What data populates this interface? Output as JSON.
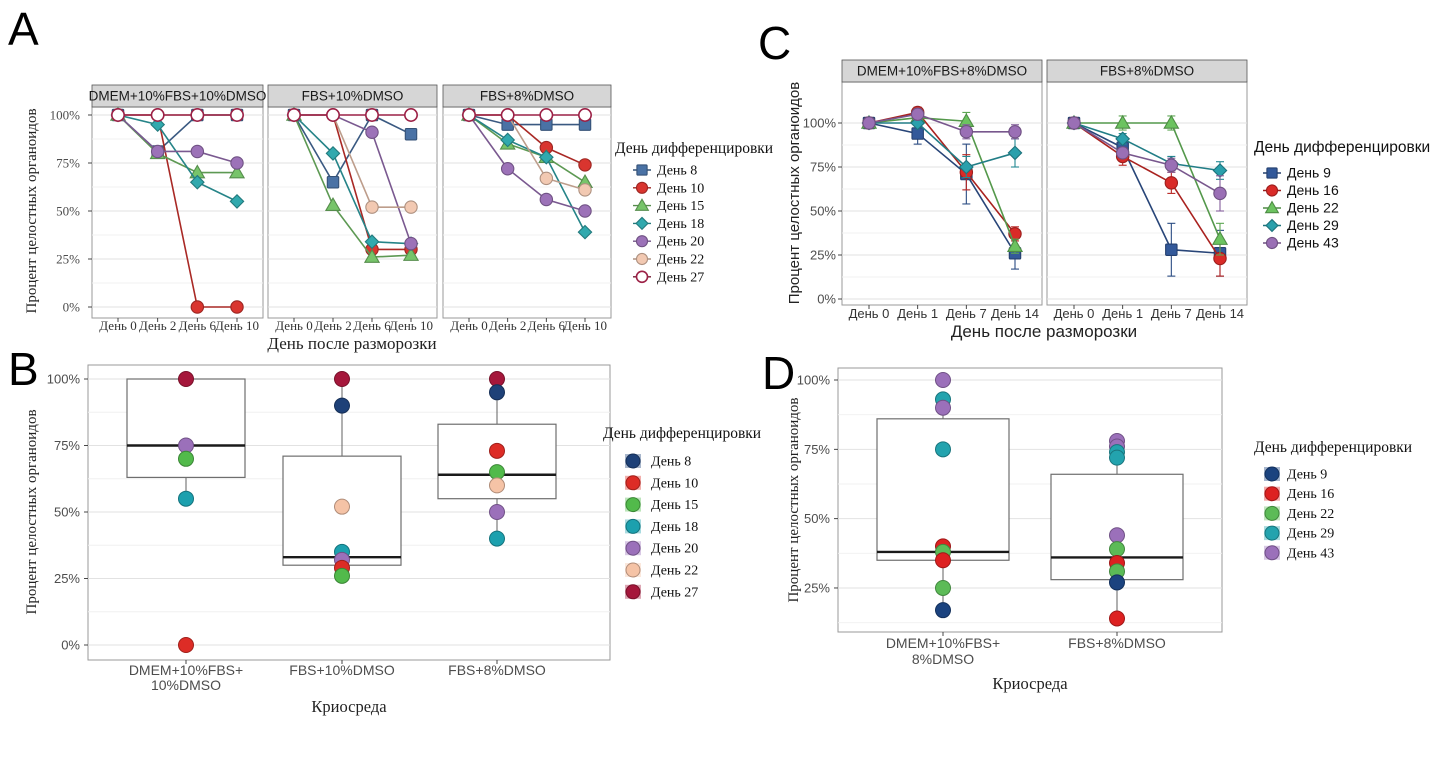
{
  "figure": {
    "background": "#ffffff",
    "panel_labels": {
      "a": "A",
      "b": "B",
      "c": "C",
      "d": "D"
    }
  },
  "chart_data": [
    {
      "panel": "A",
      "type": "line",
      "ylabel": "Процент целостных органоидов",
      "xlabel": "День после разморозки",
      "legend_title": "День дифференцировки",
      "ylim": [
        0,
        100
      ],
      "y_ticks": [
        {
          "v": 100,
          "label": "100%"
        },
        {
          "v": 75,
          "label": "75%"
        },
        {
          "v": 50,
          "label": "50%"
        },
        {
          "v": 25,
          "label": "25%"
        },
        {
          "v": 0,
          "label": "0%"
        }
      ],
      "x_categories": [
        "День 0",
        "День 2",
        "День 6",
        "День 10"
      ],
      "facets": [
        "DMEM+10%FBS+10%DMSO",
        "FBS+10%DMSO",
        "FBS+8%DMSO"
      ],
      "series": [
        {
          "name": "День 8",
          "shape": "square",
          "color": "#4A72A5",
          "values": [
            [
              100,
              81,
              100,
              100
            ],
            [
              100,
              65,
              100,
              90
            ],
            [
              100,
              95,
              95,
              95
            ]
          ]
        },
        {
          "name": "День 10",
          "shape": "circle",
          "color": "#D9352F",
          "values": [
            [
              100,
              100,
              0,
              0
            ],
            [
              100,
              100,
              30,
              30
            ],
            [
              100,
              100,
              83,
              74
            ]
          ]
        },
        {
          "name": "День 15",
          "shape": "triangle",
          "color": "#77C46A",
          "values": [
            [
              100,
              80,
              70,
              70
            ],
            [
              100,
              53,
              26,
              27
            ],
            [
              100,
              85,
              78,
              65
            ]
          ]
        },
        {
          "name": "День 18",
          "shape": "diamond",
          "color": "#31A9AE",
          "values": [
            [
              100,
              95,
              65,
              55
            ],
            [
              100,
              80,
              34,
              33
            ],
            [
              100,
              87,
              78,
              39
            ]
          ]
        },
        {
          "name": "День 20",
          "shape": "circle",
          "color": "#9C72B8",
          "values": [
            [
              100,
              81,
              81,
              75
            ],
            [
              100,
              100,
              91,
              33
            ],
            [
              100,
              72,
              56,
              50
            ]
          ]
        },
        {
          "name": "День 22",
          "shape": "circle",
          "color": "#F2C9B2",
          "values": [
            [
              100,
              100,
              100,
              100
            ],
            [
              100,
              100,
              52,
              52
            ],
            [
              100,
              100,
              67,
              61
            ]
          ]
        },
        {
          "name": "День 27",
          "shape": "open-circle",
          "color": "#9C2146",
          "values": [
            [
              100,
              100,
              100,
              100
            ],
            [
              100,
              100,
              100,
              100
            ],
            [
              100,
              100,
              100,
              100
            ]
          ]
        }
      ]
    },
    {
      "panel": "B",
      "type": "box",
      "ylabel": "Процент целостных органоидов",
      "xlabel": "Криосреда",
      "legend_title": "День дифференцировки",
      "ylim": [
        0,
        100
      ],
      "y_ticks": [
        {
          "v": 100,
          "label": "100%"
        },
        {
          "v": 75,
          "label": "75%"
        },
        {
          "v": 50,
          "label": "50%"
        },
        {
          "v": 25,
          "label": "25%"
        },
        {
          "v": 0,
          "label": "0%"
        }
      ],
      "categories": [
        [
          "DMEM+10%FBS+",
          "10%DMSO"
        ],
        [
          "FBS+10%DMSO"
        ],
        [
          "FBS+8%DMSO"
        ]
      ],
      "legend": [
        {
          "name": "День 8",
          "color": "#1E4178"
        },
        {
          "name": "День 10",
          "color": "#DD2C26"
        },
        {
          "name": "День 15",
          "color": "#52BA4B"
        },
        {
          "name": "День 18",
          "color": "#1CA0AE"
        },
        {
          "name": "День 20",
          "color": "#9B70BA"
        },
        {
          "name": "День 22",
          "color": "#F5C3A6"
        },
        {
          "name": "День 27",
          "color": "#A5173B"
        }
      ],
      "boxes": [
        {
          "q1": 63,
          "median": 75,
          "q3": 100,
          "whisker_low": 55,
          "whisker_high": 100,
          "points": [
            {
              "series": "День 27",
              "value": 100
            },
            {
              "series": "День 20",
              "value": 75
            },
            {
              "series": "День 15",
              "value": 70
            },
            {
              "series": "День 18",
              "value": 55
            },
            {
              "series": "День 10",
              "value": 0
            }
          ]
        },
        {
          "q1": 30,
          "median": 33,
          "q3": 71,
          "whisker_low": 26,
          "whisker_high": 100,
          "points": [
            {
              "series": "День 27",
              "value": 100
            },
            {
              "series": "День 8",
              "value": 90
            },
            {
              "series": "День 22",
              "value": 52
            },
            {
              "series": "День 18",
              "value": 35
            },
            {
              "series": "День 20",
              "value": 32
            },
            {
              "series": "День 10",
              "value": 29
            },
            {
              "series": "День 15",
              "value": 26
            }
          ]
        },
        {
          "q1": 55,
          "median": 64,
          "q3": 83,
          "whisker_low": 40,
          "whisker_high": 95,
          "points": [
            {
              "series": "День 27",
              "value": 100
            },
            {
              "series": "День 8",
              "value": 95
            },
            {
              "series": "День 10",
              "value": 73
            },
            {
              "series": "День 15",
              "value": 65
            },
            {
              "series": "День 22",
              "value": 60
            },
            {
              "series": "День 20",
              "value": 50
            },
            {
              "series": "День 18",
              "value": 40
            }
          ]
        }
      ]
    },
    {
      "panel": "C",
      "type": "line",
      "ylabel": "Процент целостных органоидов",
      "xlabel": "День после разморозки",
      "legend_title": "День дифференцировки",
      "ylim": [
        0,
        115
      ],
      "y_ticks": [
        {
          "v": 100,
          "label": "100%"
        },
        {
          "v": 75,
          "label": "75%"
        },
        {
          "v": 50,
          "label": "50%"
        },
        {
          "v": 25,
          "label": "25%"
        },
        {
          "v": 0,
          "label": "0%"
        }
      ],
      "x_categories": [
        "День 0",
        "День 1",
        "День 7",
        "День 14"
      ],
      "facets": [
        "DMEM+10%FBS+8%DMSO",
        "FBS+8%DMSO"
      ],
      "series": [
        {
          "name": "День 9",
          "shape": "square",
          "color": "#33599A",
          "values": [
            [
              100,
              94,
              71,
              26
            ],
            [
              100,
              86,
              28,
              26
            ]
          ],
          "errors": [
            [
              0,
              6,
              17,
              9
            ],
            [
              0,
              4,
              15,
              13
            ]
          ]
        },
        {
          "name": "День 16",
          "shape": "circle",
          "color": "#D92B28",
          "values": [
            [
              100,
              106,
              72,
              37
            ],
            [
              100,
              81,
              66,
              23
            ]
          ],
          "errors": [
            [
              0,
              3,
              10,
              4
            ],
            [
              0,
              5,
              6,
              10
            ]
          ]
        },
        {
          "name": "День 22",
          "shape": "triangle",
          "color": "#6CC360",
          "values": [
            [
              100,
              103,
              101,
              30
            ],
            [
              100,
              100,
              100,
              34
            ]
          ],
          "errors": [
            [
              0,
              0,
              5,
              4
            ],
            [
              0,
              4,
              4,
              9
            ]
          ]
        },
        {
          "name": "День 29",
          "shape": "diamond",
          "color": "#2AA0AC",
          "values": [
            [
              100,
              100,
              75,
              83
            ],
            [
              100,
              91,
              77,
              73
            ]
          ],
          "errors": [
            [
              0,
              0,
              6,
              8
            ],
            [
              0,
              3,
              4,
              5
            ]
          ]
        },
        {
          "name": "День 43",
          "shape": "circle",
          "color": "#9A6FB5",
          "values": [
            [
              100,
              105,
              95,
              95
            ],
            [
              100,
              83,
              76,
              60
            ]
          ],
          "errors": [
            [
              0,
              3,
              4,
              4
            ],
            [
              0,
              0,
              4,
              10
            ]
          ]
        }
      ]
    },
    {
      "panel": "D",
      "type": "box",
      "ylabel": "Процент целостных органоидов",
      "xlabel": "Криосреда",
      "legend_title": "День дифференцировки",
      "ylim": [
        9,
        104
      ],
      "y_ticks": [
        {
          "v": 100,
          "label": "100%"
        },
        {
          "v": 75,
          "label": "75%"
        },
        {
          "v": 50,
          "label": "50%"
        },
        {
          "v": 25,
          "label": "25%"
        }
      ],
      "categories": [
        [
          "DMEM+10%FBS+",
          "8%DMSO"
        ],
        [
          "FBS+8%DMSO"
        ]
      ],
      "legend": [
        {
          "name": "День 9",
          "color": "#1B437F"
        },
        {
          "name": "День 16",
          "color": "#DD2121"
        },
        {
          "name": "День 22",
          "color": "#5CBB57"
        },
        {
          "name": "День 29",
          "color": "#23A3AE"
        },
        {
          "name": "День 43",
          "color": "#9B70BA"
        }
      ],
      "boxes": [
        {
          "q1": 35,
          "median": 38,
          "q3": 86,
          "whisker_low": 17,
          "whisker_high": 93,
          "points": [
            {
              "series": "День 43",
              "value": 100
            },
            {
              "series": "День 29",
              "value": 93
            },
            {
              "series": "День 43",
              "value": 90
            },
            {
              "series": "День 29",
              "value": 75
            },
            {
              "series": "День 16",
              "value": 40
            },
            {
              "series": "День 22",
              "value": 38
            },
            {
              "series": "День 16",
              "value": 35
            },
            {
              "series": "День 22",
              "value": 25
            },
            {
              "series": "День 9",
              "value": 17
            }
          ]
        },
        {
          "q1": 28,
          "median": 36,
          "q3": 66,
          "whisker_low": 14,
          "whisker_high": 74,
          "points": [
            {
              "series": "День 43",
              "value": 78
            },
            {
              "series": "День 43",
              "value": 76
            },
            {
              "series": "День 29",
              "value": 74
            },
            {
              "series": "День 29",
              "value": 72
            },
            {
              "series": "День 43",
              "value": 44
            },
            {
              "series": "День 22",
              "value": 39
            },
            {
              "series": "День 16",
              "value": 34
            },
            {
              "series": "День 22",
              "value": 31
            },
            {
              "series": "День 9",
              "value": 27
            },
            {
              "series": "День 16",
              "value": 14
            }
          ]
        }
      ]
    }
  ]
}
